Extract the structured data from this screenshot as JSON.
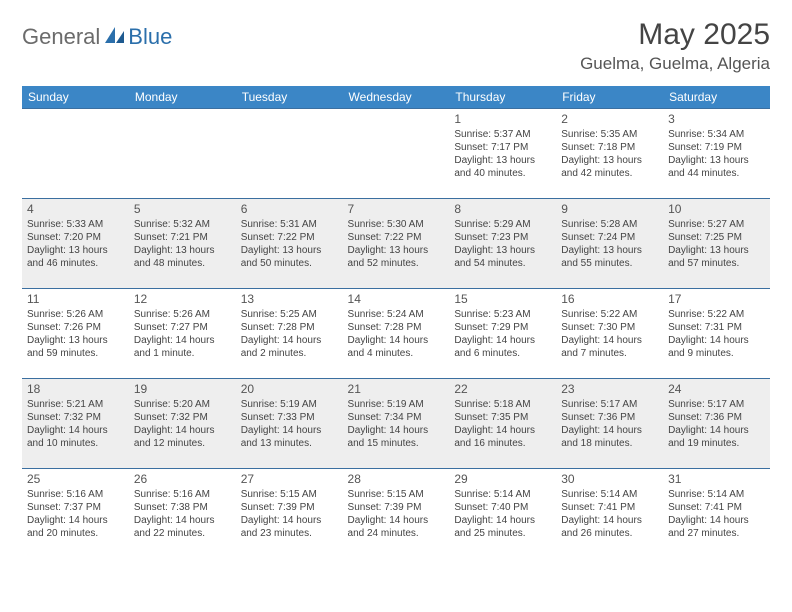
{
  "logo": {
    "word1": "General",
    "word2": "Blue"
  },
  "title": "May 2025",
  "location": "Guelma, Guelma, Algeria",
  "colors": {
    "header_bg": "#3b86c6",
    "header_text": "#ffffff",
    "row_border": "#3b6fa0",
    "alt_row_bg": "#eeeeee",
    "logo_gray": "#6b6b6b",
    "logo_blue": "#2b6fab"
  },
  "day_headers": [
    "Sunday",
    "Monday",
    "Tuesday",
    "Wednesday",
    "Thursday",
    "Friday",
    "Saturday"
  ],
  "weeks": [
    [
      null,
      null,
      null,
      null,
      {
        "n": "1",
        "sr": "5:37 AM",
        "ss": "7:17 PM",
        "dl": "13 hours and 40 minutes."
      },
      {
        "n": "2",
        "sr": "5:35 AM",
        "ss": "7:18 PM",
        "dl": "13 hours and 42 minutes."
      },
      {
        "n": "3",
        "sr": "5:34 AM",
        "ss": "7:19 PM",
        "dl": "13 hours and 44 minutes."
      }
    ],
    [
      {
        "n": "4",
        "sr": "5:33 AM",
        "ss": "7:20 PM",
        "dl": "13 hours and 46 minutes."
      },
      {
        "n": "5",
        "sr": "5:32 AM",
        "ss": "7:21 PM",
        "dl": "13 hours and 48 minutes."
      },
      {
        "n": "6",
        "sr": "5:31 AM",
        "ss": "7:22 PM",
        "dl": "13 hours and 50 minutes."
      },
      {
        "n": "7",
        "sr": "5:30 AM",
        "ss": "7:22 PM",
        "dl": "13 hours and 52 minutes."
      },
      {
        "n": "8",
        "sr": "5:29 AM",
        "ss": "7:23 PM",
        "dl": "13 hours and 54 minutes."
      },
      {
        "n": "9",
        "sr": "5:28 AM",
        "ss": "7:24 PM",
        "dl": "13 hours and 55 minutes."
      },
      {
        "n": "10",
        "sr": "5:27 AM",
        "ss": "7:25 PM",
        "dl": "13 hours and 57 minutes."
      }
    ],
    [
      {
        "n": "11",
        "sr": "5:26 AM",
        "ss": "7:26 PM",
        "dl": "13 hours and 59 minutes."
      },
      {
        "n": "12",
        "sr": "5:26 AM",
        "ss": "7:27 PM",
        "dl": "14 hours and 1 minute."
      },
      {
        "n": "13",
        "sr": "5:25 AM",
        "ss": "7:28 PM",
        "dl": "14 hours and 2 minutes."
      },
      {
        "n": "14",
        "sr": "5:24 AM",
        "ss": "7:28 PM",
        "dl": "14 hours and 4 minutes."
      },
      {
        "n": "15",
        "sr": "5:23 AM",
        "ss": "7:29 PM",
        "dl": "14 hours and 6 minutes."
      },
      {
        "n": "16",
        "sr": "5:22 AM",
        "ss": "7:30 PM",
        "dl": "14 hours and 7 minutes."
      },
      {
        "n": "17",
        "sr": "5:22 AM",
        "ss": "7:31 PM",
        "dl": "14 hours and 9 minutes."
      }
    ],
    [
      {
        "n": "18",
        "sr": "5:21 AM",
        "ss": "7:32 PM",
        "dl": "14 hours and 10 minutes."
      },
      {
        "n": "19",
        "sr": "5:20 AM",
        "ss": "7:32 PM",
        "dl": "14 hours and 12 minutes."
      },
      {
        "n": "20",
        "sr": "5:19 AM",
        "ss": "7:33 PM",
        "dl": "14 hours and 13 minutes."
      },
      {
        "n": "21",
        "sr": "5:19 AM",
        "ss": "7:34 PM",
        "dl": "14 hours and 15 minutes."
      },
      {
        "n": "22",
        "sr": "5:18 AM",
        "ss": "7:35 PM",
        "dl": "14 hours and 16 minutes."
      },
      {
        "n": "23",
        "sr": "5:17 AM",
        "ss": "7:36 PM",
        "dl": "14 hours and 18 minutes."
      },
      {
        "n": "24",
        "sr": "5:17 AM",
        "ss": "7:36 PM",
        "dl": "14 hours and 19 minutes."
      }
    ],
    [
      {
        "n": "25",
        "sr": "5:16 AM",
        "ss": "7:37 PM",
        "dl": "14 hours and 20 minutes."
      },
      {
        "n": "26",
        "sr": "5:16 AM",
        "ss": "7:38 PM",
        "dl": "14 hours and 22 minutes."
      },
      {
        "n": "27",
        "sr": "5:15 AM",
        "ss": "7:39 PM",
        "dl": "14 hours and 23 minutes."
      },
      {
        "n": "28",
        "sr": "5:15 AM",
        "ss": "7:39 PM",
        "dl": "14 hours and 24 minutes."
      },
      {
        "n": "29",
        "sr": "5:14 AM",
        "ss": "7:40 PM",
        "dl": "14 hours and 25 minutes."
      },
      {
        "n": "30",
        "sr": "5:14 AM",
        "ss": "7:41 PM",
        "dl": "14 hours and 26 minutes."
      },
      {
        "n": "31",
        "sr": "5:14 AM",
        "ss": "7:41 PM",
        "dl": "14 hours and 27 minutes."
      }
    ]
  ],
  "labels": {
    "sunrise": "Sunrise:",
    "sunset": "Sunset:",
    "daylight": "Daylight:"
  }
}
